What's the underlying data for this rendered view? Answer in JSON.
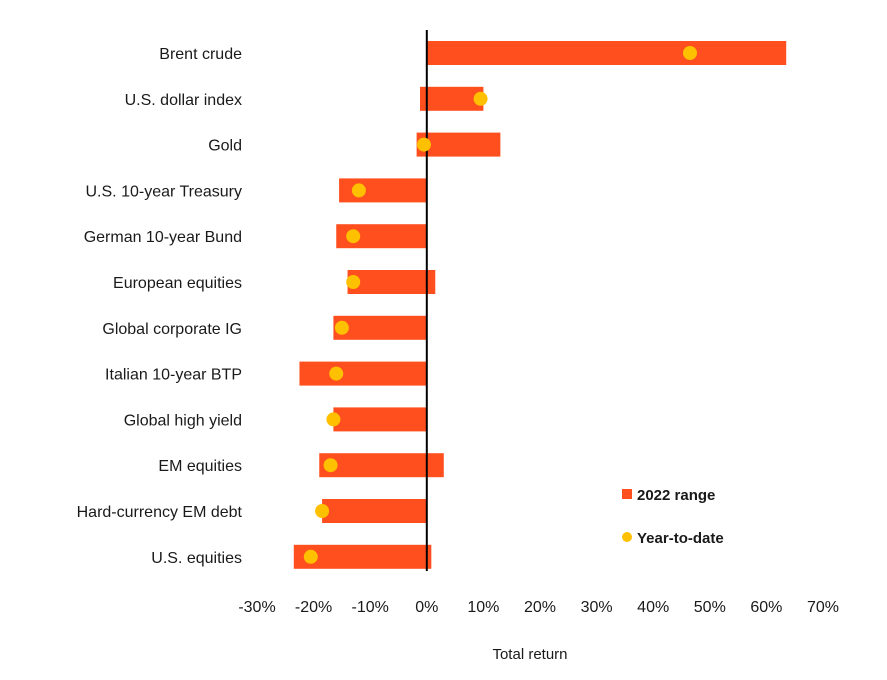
{
  "chart_data": {
    "type": "bar",
    "orientation": "horizontal",
    "categories": [
      "Brent crude",
      "U.S. dollar index",
      "Gold",
      "U.S. 10-year Treasury",
      "German 10-year Bund",
      "European equities",
      "Global corporate IG",
      "Italian 10-year BTP",
      "Global high yield",
      "EM equities",
      "Hard-currency EM debt",
      "U.S. equities"
    ],
    "series": [
      {
        "name": "2022 range",
        "kind": "range",
        "color": "#ff4f1f",
        "low": [
          0,
          -1.2,
          -1.8,
          -15.5,
          -16,
          -14,
          -16.5,
          -22.5,
          -16.5,
          -19,
          -18.5,
          -23.5
        ],
        "high": [
          63.5,
          10,
          13,
          0,
          0,
          1.5,
          0,
          0,
          0,
          3,
          0,
          0.8
        ]
      },
      {
        "name": "Year-to-date",
        "kind": "point",
        "color": "#ffc000",
        "values": [
          46.5,
          9.5,
          -0.5,
          -12,
          -13,
          -13,
          -15,
          -16,
          -16.5,
          -17,
          -18.5,
          -20.5
        ]
      }
    ],
    "xlabel": "Total return",
    "ylabel": "",
    "xlim": [
      -30,
      70
    ],
    "xticks": [
      -30,
      -20,
      -10,
      0,
      10,
      20,
      30,
      40,
      50,
      60,
      70
    ],
    "xtick_labels": [
      "-30%",
      "-20%",
      "-10%",
      "0%",
      "10%",
      "20%",
      "30%",
      "40%",
      "50%",
      "60%",
      "70%"
    ],
    "grid": false,
    "legend": {
      "position": "bottom-right",
      "entries": [
        "2022 range",
        "Year-to-date"
      ]
    }
  }
}
